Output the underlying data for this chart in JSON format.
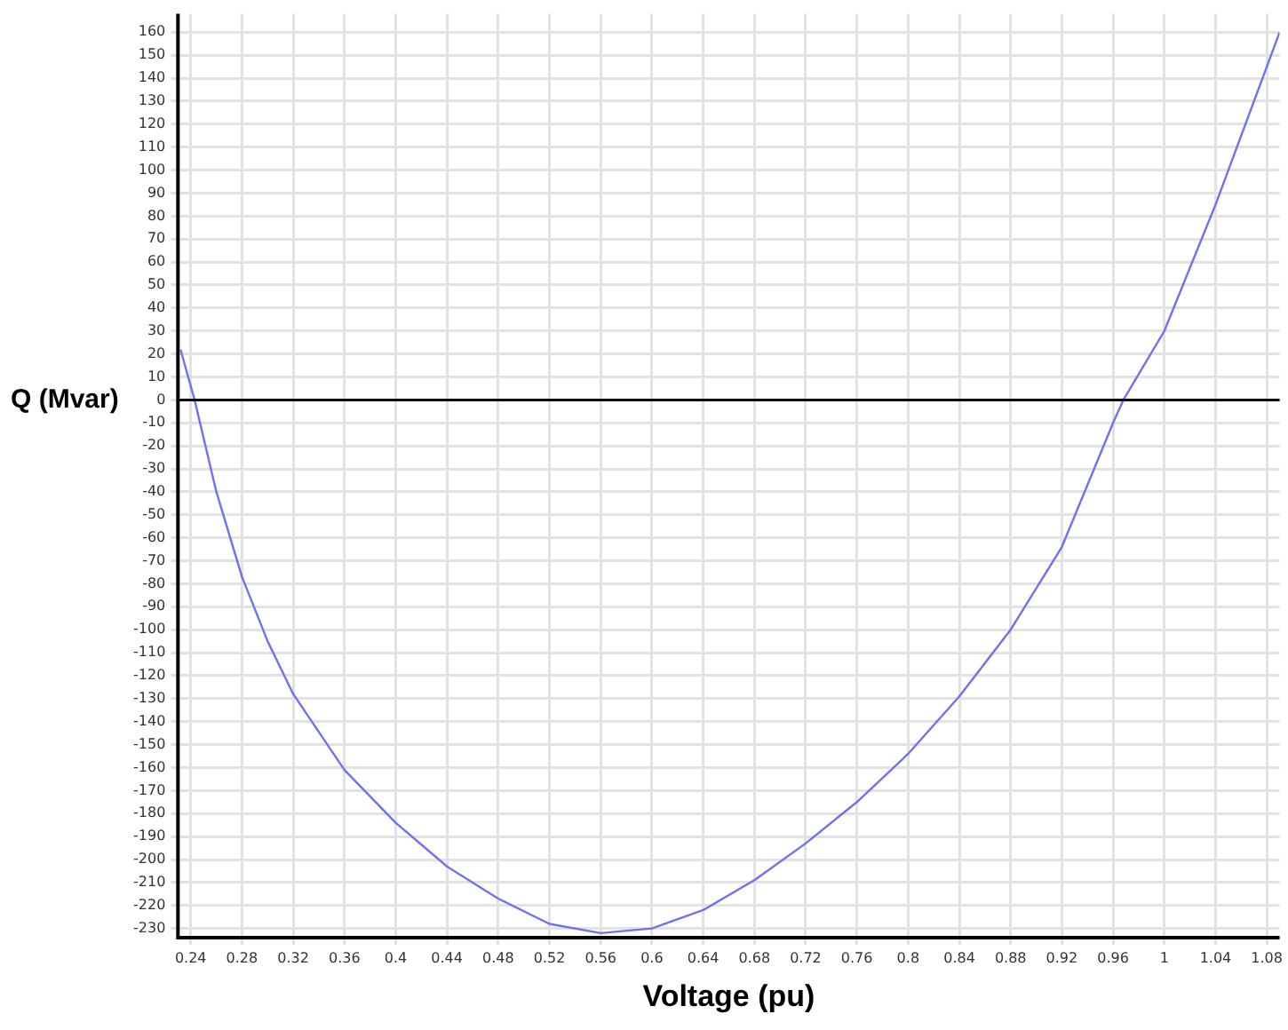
{
  "chart_data": {
    "type": "line",
    "xlabel": "Voltage (pu)",
    "ylabel": "Q (Mvar)",
    "x": [
      0.232,
      0.243,
      0.26,
      0.28,
      0.3,
      0.32,
      0.36,
      0.4,
      0.44,
      0.48,
      0.52,
      0.56,
      0.6,
      0.64,
      0.68,
      0.72,
      0.76,
      0.8,
      0.84,
      0.88,
      0.92,
      0.96,
      0.968,
      1.0,
      1.04,
      1.08,
      1.09
    ],
    "series": [
      {
        "color": "#7070f0",
        "values": [
          22,
          0,
          -40,
          -77,
          -105,
          -128,
          -161,
          -184,
          -203,
          -217,
          -228,
          -232,
          -230,
          -222,
          -209,
          -193,
          -175,
          -154,
          -129,
          -100,
          -64,
          -10,
          0,
          30,
          85,
          145,
          160
        ]
      }
    ],
    "xlim": [
      0.23,
      1.09
    ],
    "xticks": [
      0.24,
      0.28,
      0.32,
      0.36,
      0.4,
      0.44,
      0.48,
      0.52,
      0.56,
      0.6,
      0.64,
      0.68,
      0.72,
      0.76,
      0.8,
      0.84,
      0.88,
      0.92,
      0.96,
      1,
      1.04,
      1.08
    ],
    "ylim": [
      -234,
      168
    ],
    "yticks": [
      -230,
      -220,
      -210,
      -200,
      -190,
      -180,
      -170,
      -160,
      -150,
      -140,
      -130,
      -120,
      -110,
      -100,
      -90,
      -80,
      -70,
      -60,
      -50,
      -40,
      -30,
      -20,
      -10,
      0,
      10,
      20,
      30,
      40,
      50,
      60,
      70,
      80,
      90,
      100,
      110,
      120,
      130,
      140,
      150,
      160
    ],
    "ref_lines": [
      {
        "axis": "y",
        "value": 0,
        "color": "#000000"
      }
    ],
    "grid": true,
    "legend": false,
    "marker": "none",
    "line_style": "solid"
  }
}
